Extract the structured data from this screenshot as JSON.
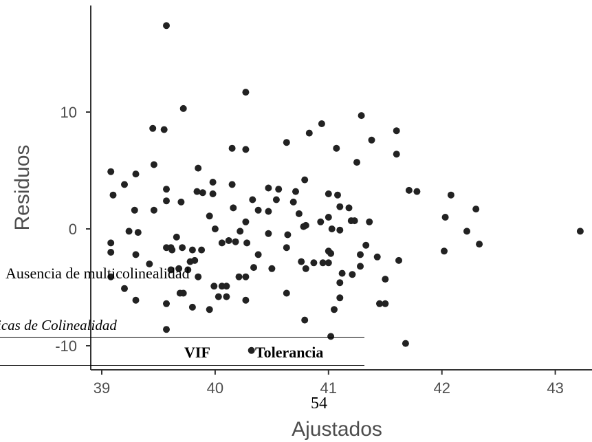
{
  "chart_data": {
    "type": "scatter",
    "xlabel": "Ajustados",
    "ylabel": "Residuos",
    "xlim": [
      38.9,
      43.2
    ],
    "ylim": [
      -11.8,
      18.6
    ],
    "xticks": [
      39,
      40,
      41,
      42,
      43
    ],
    "yticks": [
      -10,
      0,
      10
    ],
    "grid": false,
    "series": [
      {
        "points": [
          [
            39.57,
            17.4
          ],
          [
            40.27,
            11.7
          ],
          [
            39.72,
            10.3
          ],
          [
            41.29,
            9.7
          ],
          [
            40.94,
            9.0
          ],
          [
            39.55,
            8.5
          ],
          [
            41.6,
            8.4
          ],
          [
            39.45,
            8.6
          ],
          [
            40.83,
            8.2
          ],
          [
            41.38,
            7.6
          ],
          [
            40.63,
            7.4
          ],
          [
            41.07,
            6.9
          ],
          [
            40.15,
            6.9
          ],
          [
            40.27,
            6.8
          ],
          [
            41.6,
            6.4
          ],
          [
            41.25,
            5.7
          ],
          [
            39.46,
            5.5
          ],
          [
            39.85,
            5.2
          ],
          [
            39.08,
            4.9
          ],
          [
            39.3,
            4.7
          ],
          [
            40.79,
            4.2
          ],
          [
            39.98,
            4.0
          ],
          [
            40.15,
            3.8
          ],
          [
            39.2,
            3.8
          ],
          [
            39.57,
            3.4
          ],
          [
            40.47,
            3.5
          ],
          [
            40.56,
            3.4
          ],
          [
            40.71,
            3.2
          ],
          [
            41.71,
            3.3
          ],
          [
            41.78,
            3.2
          ],
          [
            39.84,
            3.2
          ],
          [
            39.89,
            3.1
          ],
          [
            39.98,
            3.0
          ],
          [
            41.0,
            3.0
          ],
          [
            41.08,
            2.9
          ],
          [
            42.08,
            2.9
          ],
          [
            40.33,
            2.5
          ],
          [
            40.54,
            2.5
          ],
          [
            39.57,
            2.4
          ],
          [
            39.7,
            2.3
          ],
          [
            40.69,
            2.3
          ],
          [
            41.1,
            1.9
          ],
          [
            40.38,
            1.6
          ],
          [
            40.47,
            1.5
          ],
          [
            41.18,
            1.8
          ],
          [
            40.74,
            1.3
          ],
          [
            39.29,
            1.6
          ],
          [
            39.46,
            1.6
          ],
          [
            39.1,
            2.9
          ],
          [
            40.16,
            1.8
          ],
          [
            42.3,
            1.7
          ],
          [
            39.95,
            1.1
          ],
          [
            41.0,
            1.0
          ],
          [
            42.03,
            1.0
          ],
          [
            40.27,
            0.6
          ],
          [
            40.93,
            0.6
          ],
          [
            41.2,
            0.7
          ],
          [
            41.23,
            0.7
          ],
          [
            41.36,
            0.6
          ],
          [
            40.8,
            0.3
          ],
          [
            40.78,
            0.2
          ],
          [
            40.0,
            0.0
          ],
          [
            40.22,
            -0.2
          ],
          [
            41.03,
            0.0
          ],
          [
            41.1,
            -0.1
          ],
          [
            40.47,
            -0.4
          ],
          [
            39.24,
            -0.2
          ],
          [
            39.32,
            -0.3
          ],
          [
            43.22,
            -0.2
          ],
          [
            42.22,
            -0.2
          ],
          [
            40.64,
            -0.5
          ],
          [
            39.66,
            -0.7
          ],
          [
            39.08,
            -1.2
          ],
          [
            40.12,
            -1.0
          ],
          [
            40.06,
            -1.2
          ],
          [
            40.18,
            -1.1
          ],
          [
            40.28,
            -1.2
          ],
          [
            42.33,
            -1.3
          ],
          [
            41.33,
            -1.4
          ],
          [
            40.63,
            -1.6
          ],
          [
            39.57,
            -1.6
          ],
          [
            39.61,
            -1.6
          ],
          [
            39.71,
            -1.6
          ],
          [
            39.8,
            -1.8
          ],
          [
            39.88,
            -1.8
          ],
          [
            39.62,
            -1.8
          ],
          [
            39.08,
            -2.0
          ],
          [
            42.02,
            -1.9
          ],
          [
            41.0,
            -1.9
          ],
          [
            41.02,
            -2.1
          ],
          [
            39.3,
            -2.2
          ],
          [
            40.38,
            -2.2
          ],
          [
            41.28,
            -2.2
          ],
          [
            41.43,
            -2.4
          ],
          [
            41.62,
            -2.7
          ],
          [
            39.82,
            -2.7
          ],
          [
            39.78,
            -2.8
          ],
          [
            40.76,
            -2.8
          ],
          [
            40.87,
            -2.9
          ],
          [
            40.95,
            -2.9
          ],
          [
            41.0,
            -2.9
          ],
          [
            39.42,
            -3.0
          ],
          [
            41.28,
            -3.2
          ],
          [
            40.34,
            -3.3
          ],
          [
            40.5,
            -3.4
          ],
          [
            39.68,
            -3.4
          ],
          [
            39.61,
            -3.5
          ],
          [
            39.76,
            -3.5
          ],
          [
            40.8,
            -3.4
          ],
          [
            41.12,
            -3.8
          ],
          [
            41.21,
            -3.9
          ],
          [
            40.21,
            -4.1
          ],
          [
            40.27,
            -4.1
          ],
          [
            39.08,
            -4.1
          ],
          [
            39.85,
            -4.1
          ],
          [
            41.5,
            -4.3
          ],
          [
            41.1,
            -4.6
          ],
          [
            39.99,
            -4.9
          ],
          [
            40.06,
            -4.9
          ],
          [
            40.1,
            -4.9
          ],
          [
            39.2,
            -5.1
          ],
          [
            39.72,
            -5.5
          ],
          [
            39.69,
            -5.5
          ],
          [
            40.63,
            -5.5
          ],
          [
            40.03,
            -5.8
          ],
          [
            40.1,
            -5.8
          ],
          [
            41.1,
            -5.9
          ],
          [
            39.3,
            -6.1
          ],
          [
            40.27,
            -6.1
          ],
          [
            41.45,
            -6.4
          ],
          [
            41.5,
            -6.4
          ],
          [
            39.57,
            -6.4
          ],
          [
            39.8,
            -6.7
          ],
          [
            39.95,
            -6.9
          ],
          [
            41.05,
            -6.9
          ],
          [
            40.79,
            -7.8
          ],
          [
            39.57,
            -8.6
          ],
          [
            41.02,
            -9.2
          ],
          [
            41.68,
            -9.8
          ],
          [
            40.32,
            -10.4
          ]
        ]
      }
    ]
  },
  "overlay": {
    "heading": "Ausencia de multicolinealidad",
    "table_title": "icas de Colinealidad",
    "col_vif": "VIF",
    "col_tolerancia": "Tolerancia",
    "page_number": "54"
  }
}
